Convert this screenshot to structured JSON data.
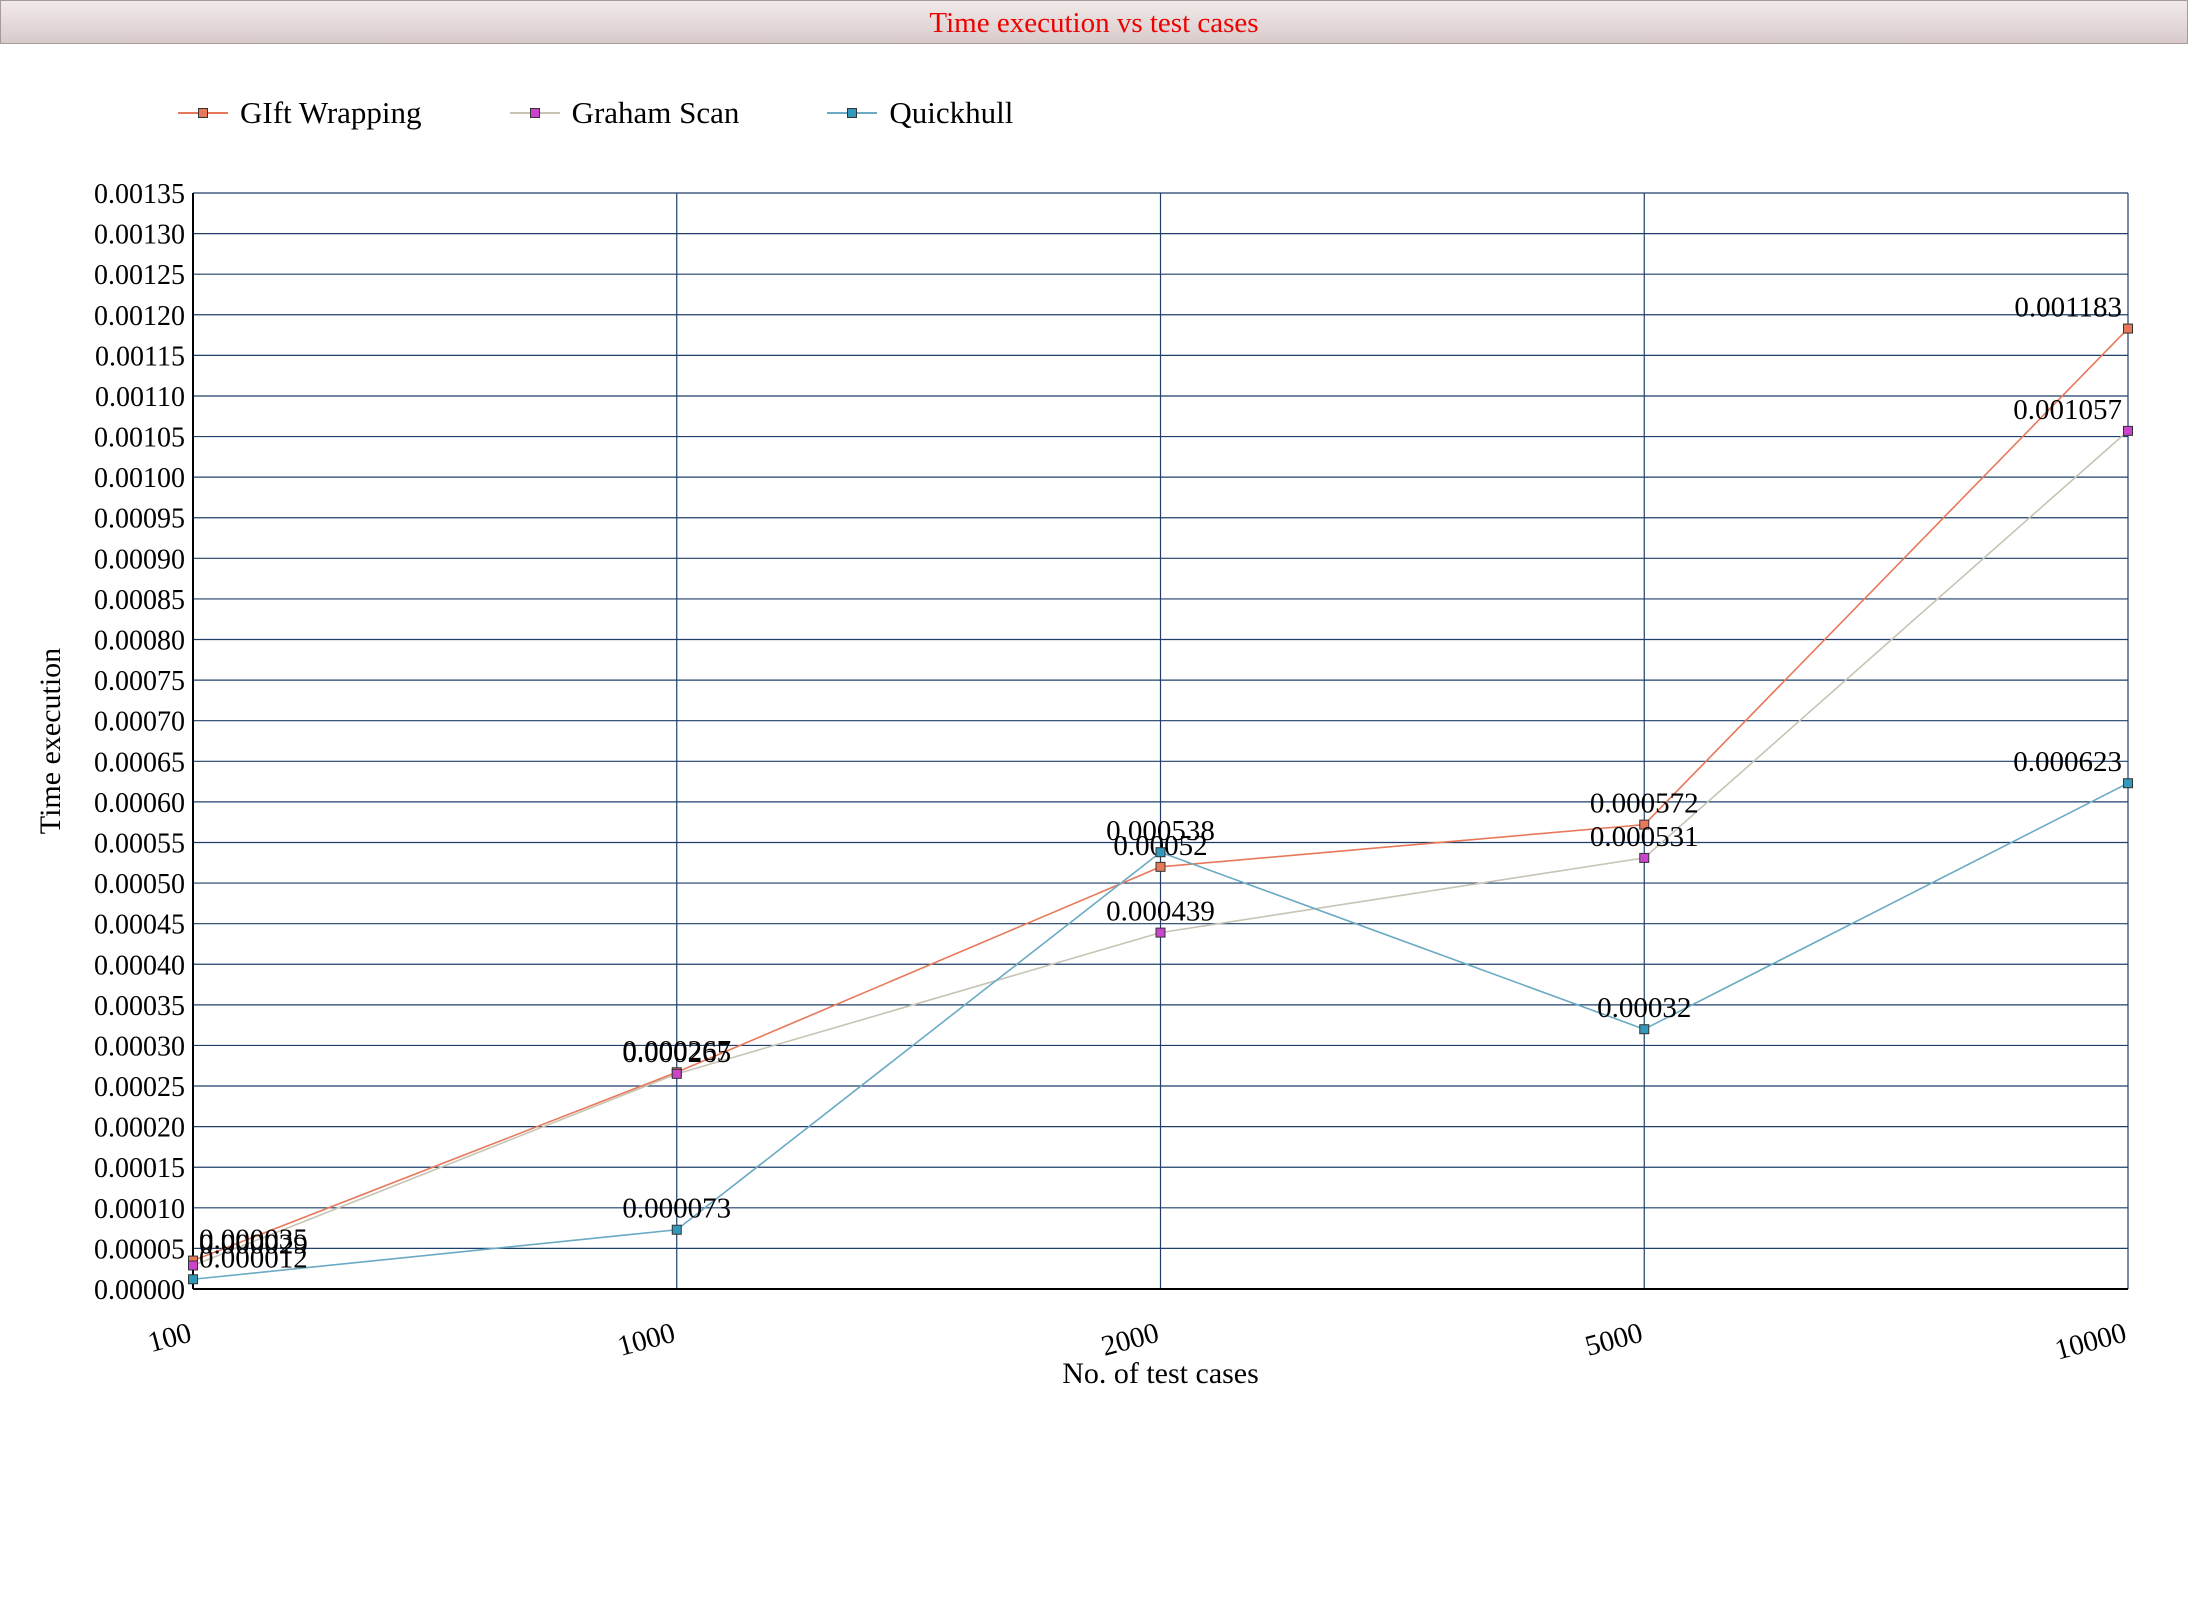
{
  "chart_data": {
    "type": "line",
    "title": "Time execution vs test cases",
    "xlabel": "No. of test cases",
    "ylabel": "Time execution",
    "categories": [
      "100",
      "1000",
      "2000",
      "5000",
      "10000"
    ],
    "ylim": [
      0,
      0.00135
    ],
    "y_ticks": [
      "0.00000",
      "0.00005",
      "0.00010",
      "0.00015",
      "0.00020",
      "0.00025",
      "0.00030",
      "0.00035",
      "0.00040",
      "0.00045",
      "0.00050",
      "0.00055",
      "0.00060",
      "0.00065",
      "0.00070",
      "0.00075",
      "0.00080",
      "0.00085",
      "0.00090",
      "0.00095",
      "0.00100",
      "0.00105",
      "0.00110",
      "0.00115",
      "0.00120",
      "0.00125",
      "0.00130",
      "0.00135"
    ],
    "grid": true,
    "legend_position": "top-left",
    "series": [
      {
        "name": "GIft Wrapping",
        "color": "#e8785a",
        "values": [
          3.5e-05,
          0.000267,
          0.00052,
          0.000572,
          0.001183
        ],
        "labels": [
          "0.000035",
          "0.000267",
          "0.00052",
          "0.000572",
          "0.001183"
        ]
      },
      {
        "name": "Graham Scan",
        "color": "#c8c4b4",
        "marker_color": "#cc44cc",
        "values": [
          2.9e-05,
          0.000265,
          0.000439,
          0.000531,
          0.001057
        ],
        "labels": [
          "0.000029",
          "0.000265",
          "0.000439",
          "0.000531",
          "0.001057"
        ]
      },
      {
        "name": "Quickhull",
        "color": "#6aaac4",
        "marker_color": "#3399bb",
        "values": [
          1.2e-05,
          7.3e-05,
          0.000538,
          0.00032,
          0.000623
        ],
        "labels": [
          "0.000012",
          "0.000073",
          "0.000538",
          "0.00032",
          "0.000623"
        ]
      }
    ]
  }
}
